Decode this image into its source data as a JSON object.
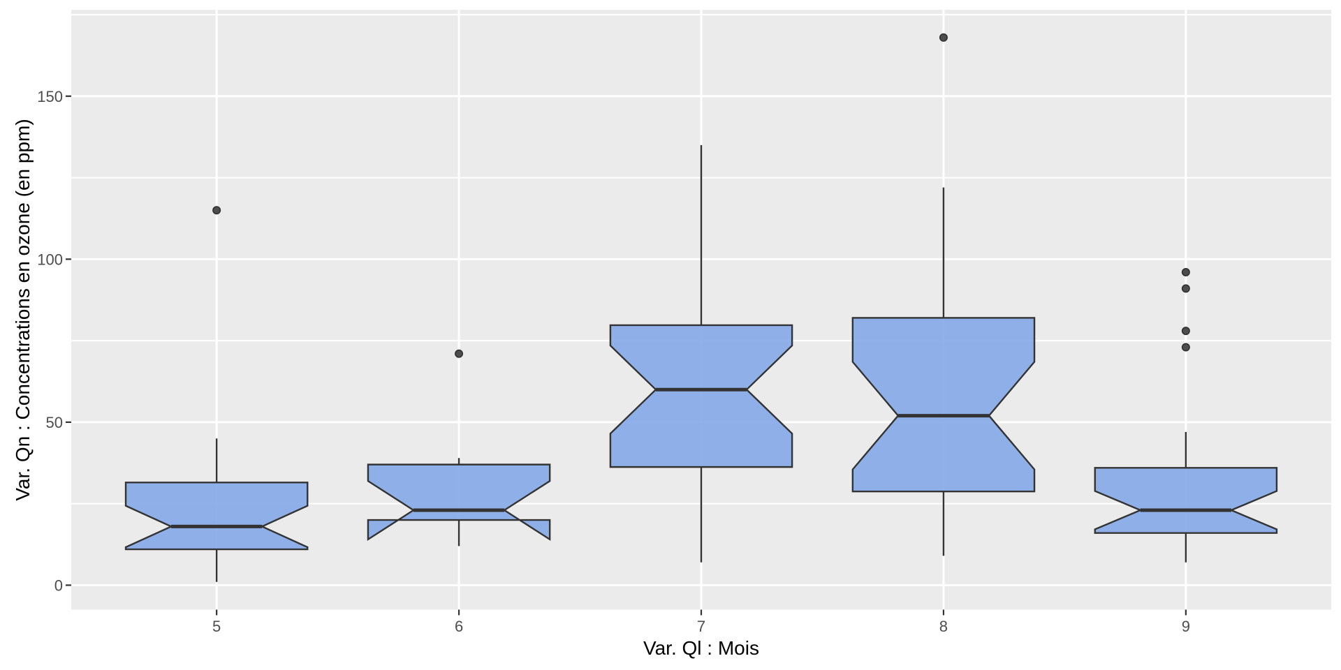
{
  "figure": {
    "colors": {
      "background": "#FFFFFF",
      "panel_bg": "#EBEBEB",
      "gridline": "#FFFFFF",
      "box_fill": "#85A8E8",
      "box_fill_opacity": 0.9,
      "box_stroke": "#333333",
      "median_line": "#333333",
      "whisker": "#333333",
      "outlier_fill": "#4D4D4D",
      "outlier_stroke": "#303030",
      "tick_mark": "#333333",
      "tick_label": "#4D4D4D",
      "axis_title": "#000000"
    }
  },
  "chart_data": {
    "type": "boxplot",
    "notched": true,
    "title": "",
    "xlabel": "Var. Ql : Mois",
    "ylabel": "Var. Qn : Concentrations en ozone (en ppm)",
    "categories": [
      "5",
      "6",
      "7",
      "8",
      "9"
    ],
    "y_ticks": [
      0,
      50,
      100,
      150
    ],
    "y_minor_ticks": [
      25,
      75,
      125,
      175
    ],
    "ylim": [
      -7.5,
      176.5
    ],
    "grid": true,
    "legend": "none",
    "series": [
      {
        "category": "5",
        "whisker_low": 1,
        "q1": 11,
        "median": 18,
        "q3": 31.5,
        "whisker_high": 45,
        "notch_low": 11.65,
        "notch_high": 24.35,
        "outliers": [
          115
        ]
      },
      {
        "category": "6",
        "whisker_low": 12,
        "q1": 20,
        "median": 23,
        "q3": 37,
        "whisker_high": 39,
        "notch_low": 14.05,
        "notch_high": 31.95,
        "outliers": [
          71
        ]
      },
      {
        "category": "7",
        "whisker_low": 7,
        "q1": 36.25,
        "median": 60,
        "q3": 79.75,
        "whisker_high": 135,
        "notch_low": 46.5,
        "notch_high": 73.5,
        "outliers": []
      },
      {
        "category": "8",
        "whisker_low": 9,
        "q1": 28.75,
        "median": 52,
        "q3": 82,
        "whisker_high": 122,
        "notch_low": 35.5,
        "notch_high": 68.5,
        "outliers": [
          168
        ]
      },
      {
        "category": "9",
        "whisker_low": 7,
        "q1": 16,
        "median": 23,
        "q3": 36,
        "whisker_high": 47,
        "notch_low": 17.13,
        "notch_high": 28.87,
        "outliers": [
          73,
          78,
          91,
          96
        ]
      }
    ]
  }
}
